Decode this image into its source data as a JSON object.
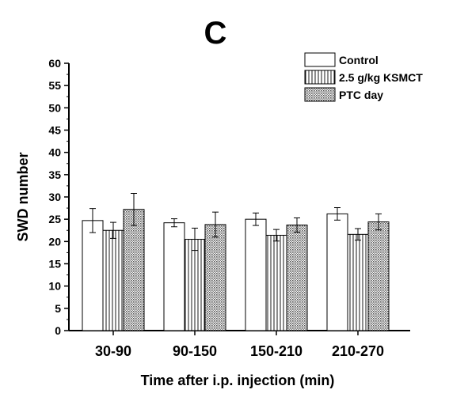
{
  "panel_label": "C",
  "colors": {
    "axis": "#000000",
    "bar_edge": "#000000",
    "bar_fill": "#ffffff",
    "dot_fill": "#b9b9b9"
  },
  "chart_data": {
    "type": "bar",
    "title": "",
    "xlabel": "Time after i.p. injection (min)",
    "ylabel": "SWD number",
    "categories": [
      "30-90",
      "90-150",
      "150-210",
      "210-270"
    ],
    "ylim": [
      0,
      60
    ],
    "yticks": [
      "0",
      "5",
      "10",
      "15",
      "20",
      "25",
      "30",
      "35",
      "40",
      "45",
      "50",
      "55",
      "60"
    ],
    "grid": false,
    "legend_position": "top-right",
    "series": [
      {
        "name": "Control",
        "pattern": "plain",
        "values": [
          24.7,
          24.2,
          25.0,
          26.2
        ],
        "errors": [
          2.7,
          0.9,
          1.4,
          1.4
        ]
      },
      {
        "name": "2.5 g/kg KSMCT",
        "pattern": "vertical-lines",
        "values": [
          22.5,
          20.5,
          21.4,
          21.6
        ],
        "errors": [
          1.8,
          2.5,
          1.3,
          1.3
        ]
      },
      {
        "name": "PTC day",
        "pattern": "dotted",
        "values": [
          27.2,
          23.8,
          23.7,
          24.4
        ],
        "errors": [
          3.6,
          2.8,
          1.6,
          1.8
        ]
      }
    ]
  }
}
